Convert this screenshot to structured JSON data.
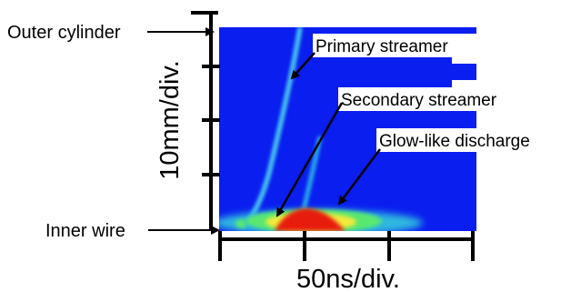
{
  "labels": {
    "outer_cylinder": "Outer cylinder",
    "inner_wire": "Inner wire",
    "y_scale": "10mm/div.",
    "x_scale": "50ns/div."
  },
  "annotations": {
    "primary_streamer": "Primary streamer",
    "secondary_streamer": "Secondary streamer",
    "glow_discharge": "Glow-like discharge"
  },
  "colors": {
    "background_field": "#0a1ef0",
    "streamer_cyan": "#30d6e6",
    "glow_green": "#58e870",
    "glow_yellow": "#f2ea3a",
    "glow_red": "#e81a10",
    "axis": "#000000"
  }
}
